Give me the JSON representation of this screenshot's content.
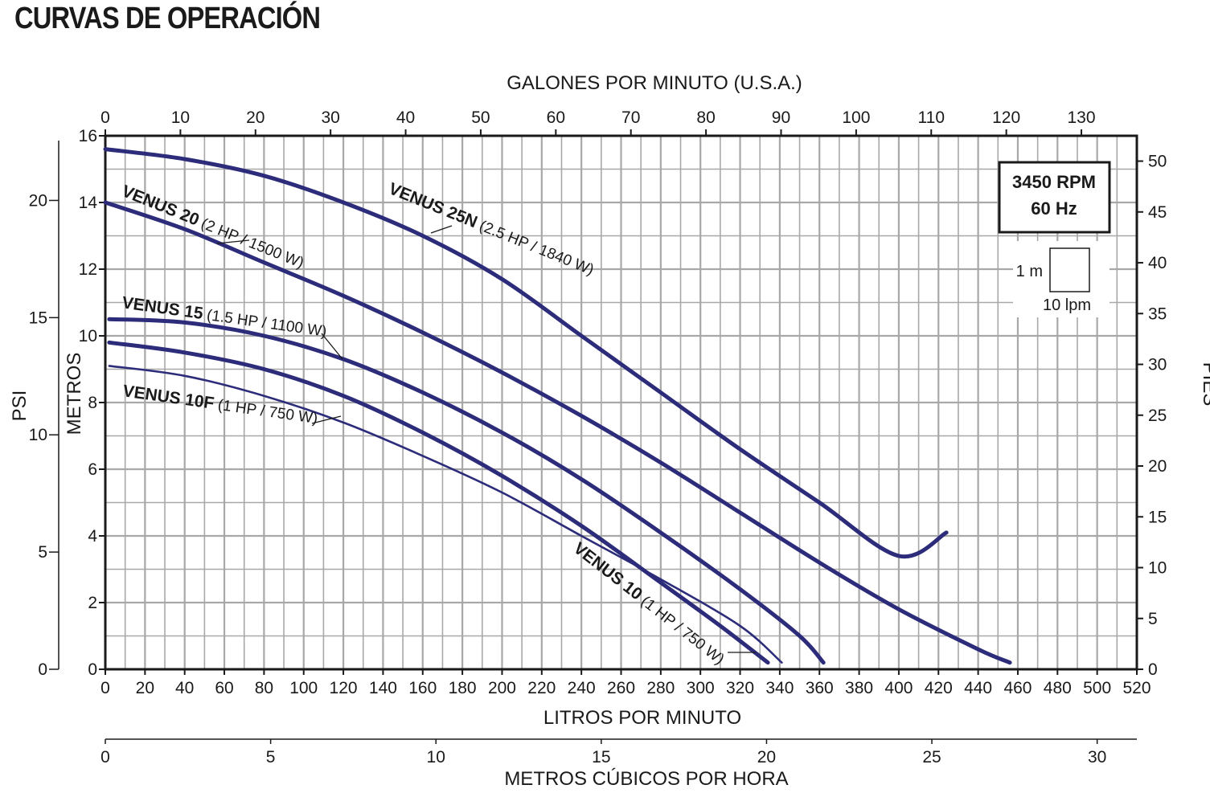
{
  "title": "CURVAS DE OPERACIÓN",
  "chart_data": {
    "type": "line",
    "top_axis": {
      "label": "GALONES POR MINUTO (U.S.A.)",
      "ticks": [
        0,
        10,
        20,
        30,
        40,
        50,
        60,
        70,
        80,
        90,
        100,
        110,
        120,
        130
      ]
    },
    "bottom_axis": {
      "label": "LITROS POR MINUTO",
      "range": [
        0,
        520
      ],
      "ticks": [
        0,
        20,
        40,
        60,
        80,
        100,
        120,
        140,
        160,
        180,
        200,
        220,
        240,
        260,
        280,
        300,
        320,
        340,
        360,
        380,
        400,
        420,
        440,
        460,
        480,
        500,
        520
      ]
    },
    "bottom_axis_2": {
      "label": "METROS CÚBICOS POR HORA",
      "ticks": [
        0,
        5,
        10,
        15,
        20,
        25,
        30
      ]
    },
    "left_axis": {
      "label": "METROS",
      "range": [
        0,
        16
      ],
      "ticks": [
        0,
        2,
        4,
        6,
        8,
        10,
        12,
        14,
        16
      ]
    },
    "left_axis_2": {
      "label": "PSI",
      "ticks": [
        0,
        5,
        10,
        15,
        20
      ]
    },
    "right_axis": {
      "label": "PIES",
      "ticks": [
        0,
        5,
        10,
        15,
        20,
        25,
        30,
        35,
        40,
        45,
        50
      ]
    },
    "grid": true,
    "info_box": {
      "line1": "3450 RPM",
      "line2": "60 Hz"
    },
    "scale_legend": {
      "vertical": "1 m",
      "horizontal": "10 lpm"
    },
    "series": [
      {
        "name": "VENUS 25N",
        "spec": "(2.5 HP / 1840 W)",
        "color": "#2c2c7a",
        "weight": "thick",
        "x": [
          0,
          40,
          80,
          120,
          160,
          200,
          240,
          280,
          320,
          360,
          400,
          424
        ],
        "y": [
          15.6,
          15.2,
          14.6,
          13.8,
          12.8,
          11.5,
          10.0,
          8.3,
          6.4,
          4.4,
          2.4,
          4.1
        ]
      },
      {
        "name": "VENUS 20",
        "spec": "(2 HP / 1500 W)",
        "color": "#2c2c7a",
        "weight": "thick",
        "x": [
          0,
          40,
          80,
          120,
          160,
          200,
          240,
          280,
          320,
          360,
          400,
          440,
          456
        ],
        "y": [
          14.0,
          13.2,
          12.2,
          11.2,
          10.1,
          8.9,
          7.6,
          6.2,
          4.7,
          3.2,
          1.8,
          0.6,
          0.2
        ]
      },
      {
        "name": "VENUS 15",
        "spec": "(1.5 HP / 1100 W)",
        "color": "#2c2c7a",
        "weight": "thick",
        "x": [
          2,
          40,
          80,
          120,
          160,
          200,
          240,
          280,
          320,
          350,
          362
        ],
        "y": [
          10.5,
          10.4,
          10.0,
          9.3,
          8.3,
          7.1,
          5.7,
          4.1,
          2.4,
          1.0,
          0.2
        ]
      },
      {
        "name": "VENUS 10",
        "spec": "(1 HP / 750 W)",
        "color": "#2c2c7a",
        "weight": "thick",
        "x": [
          2,
          40,
          80,
          120,
          160,
          200,
          240,
          280,
          310,
          334
        ],
        "y": [
          9.8,
          9.5,
          9.0,
          8.2,
          7.1,
          5.8,
          4.3,
          2.6,
          1.3,
          0.2
        ]
      },
      {
        "name": "VENUS 10F",
        "spec": "(1 HP / 750 W)",
        "color": "#2c2c7a",
        "weight": "thin",
        "x": [
          2,
          40,
          80,
          120,
          160,
          200,
          240,
          280,
          320,
          341
        ],
        "y": [
          9.1,
          8.8,
          8.2,
          7.4,
          6.4,
          5.3,
          4.0,
          2.7,
          1.3,
          0.2
        ]
      }
    ]
  }
}
